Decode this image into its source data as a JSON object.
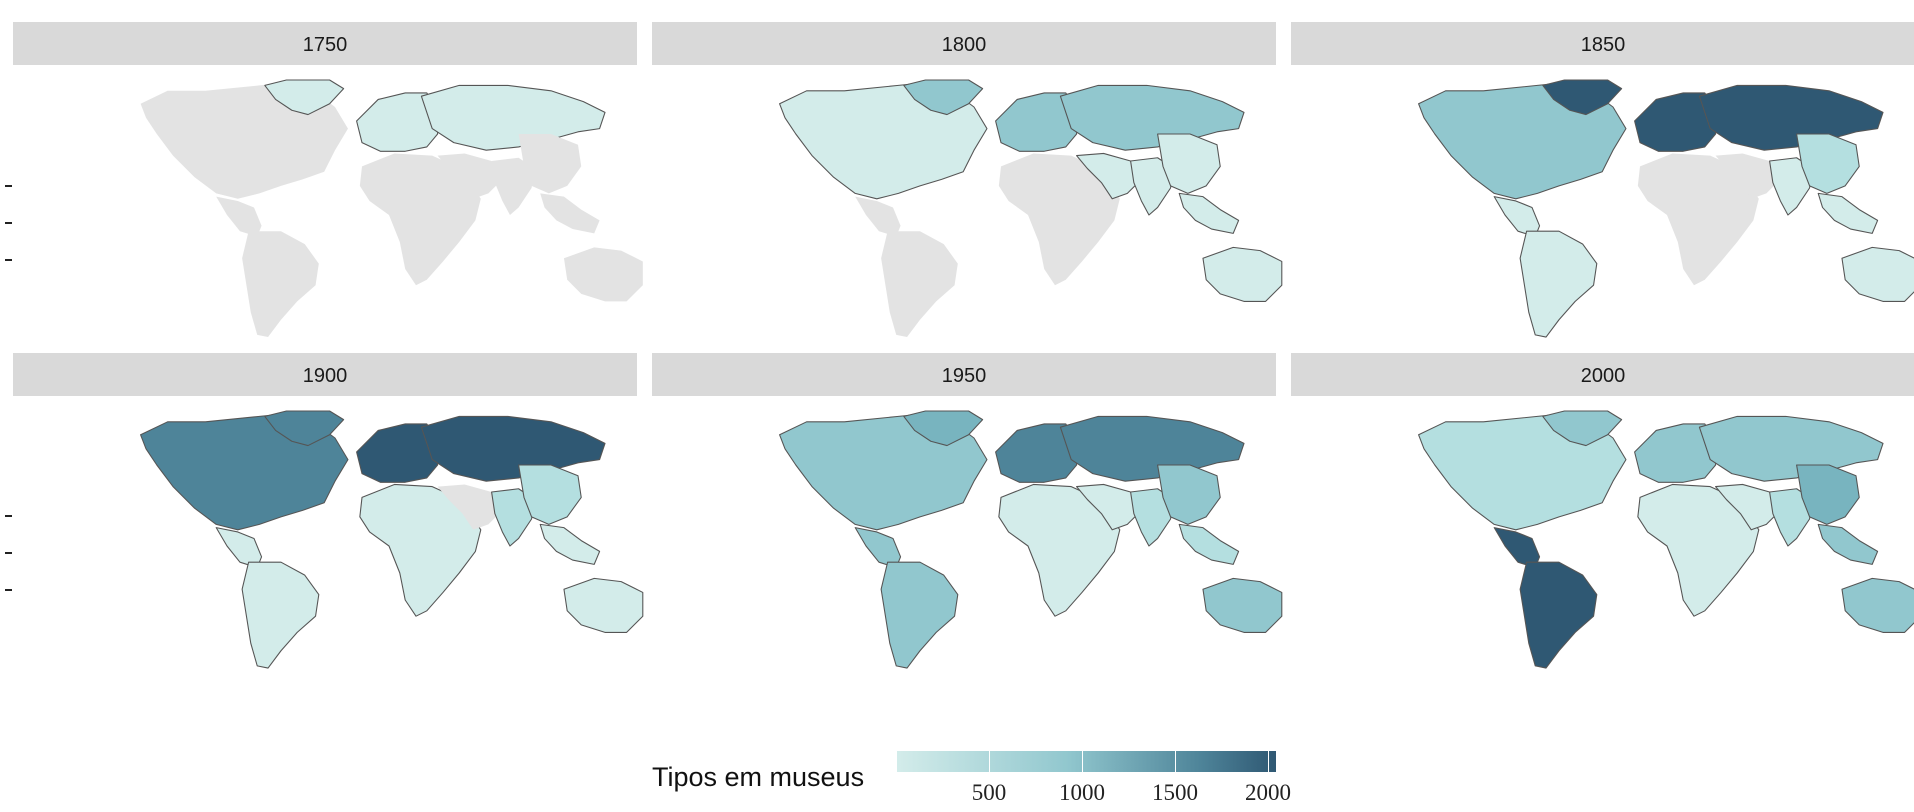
{
  "panels": [
    {
      "year": "1750",
      "levels": {
        "north_america": 0,
        "greenland": 1,
        "europe": 1,
        "russia": 1,
        "central_america": 0,
        "south_america": 0,
        "africa": 0,
        "middle_east": 0,
        "south_asia": 0,
        "east_asia": 0,
        "southeast_asia": 0,
        "australia": 0
      }
    },
    {
      "year": "1800",
      "levels": {
        "north_america": 1,
        "greenland": 3,
        "europe": 3,
        "russia": 3,
        "central_america": 0,
        "south_america": 0,
        "africa": 0,
        "middle_east": 1,
        "south_asia": 1,
        "east_asia": 1,
        "southeast_asia": 1,
        "australia": 1
      }
    },
    {
      "year": "1850",
      "levels": {
        "north_america": 3,
        "greenland": 6,
        "europe": 6,
        "russia": 6,
        "central_america": 1,
        "south_america": 1,
        "africa": 0,
        "middle_east": 0,
        "south_asia": 1,
        "east_asia": 2,
        "southeast_asia": 1,
        "australia": 1
      }
    },
    {
      "year": "1900",
      "levels": {
        "north_america": 5,
        "greenland": 5,
        "europe": 6,
        "russia": 6,
        "central_america": 1,
        "south_america": 1,
        "africa": 1,
        "middle_east": 0,
        "south_asia": 2,
        "east_asia": 2,
        "southeast_asia": 1,
        "australia": 1
      }
    },
    {
      "year": "1950",
      "levels": {
        "north_america": 3,
        "greenland": 4,
        "europe": 5,
        "russia": 5,
        "central_america": 3,
        "south_america": 3,
        "africa": 1,
        "middle_east": 1,
        "south_asia": 2,
        "east_asia": 3,
        "southeast_asia": 2,
        "australia": 3
      }
    },
    {
      "year": "2000",
      "levels": {
        "north_america": 2,
        "greenland": 3,
        "europe": 3,
        "russia": 3,
        "central_america": 6,
        "south_america": 6,
        "africa": 1,
        "middle_east": 1,
        "south_asia": 2,
        "east_asia": 4,
        "southeast_asia": 3,
        "australia": 3
      }
    }
  ],
  "palette": [
    "#e3e3e3",
    "#d3ecea",
    "#b4dfe0",
    "#91c7ce",
    "#78b4bf",
    "#4e8499",
    "#2f5873"
  ],
  "strip_color": "#d9d9d9",
  "border_color": "#555555",
  "legend": {
    "title": "Tipos em museus",
    "ticks": [
      "500",
      "1000",
      "1500",
      "2000"
    ],
    "gradient_start": "#d3ecea",
    "gradient_end": "#2f5873"
  }
}
